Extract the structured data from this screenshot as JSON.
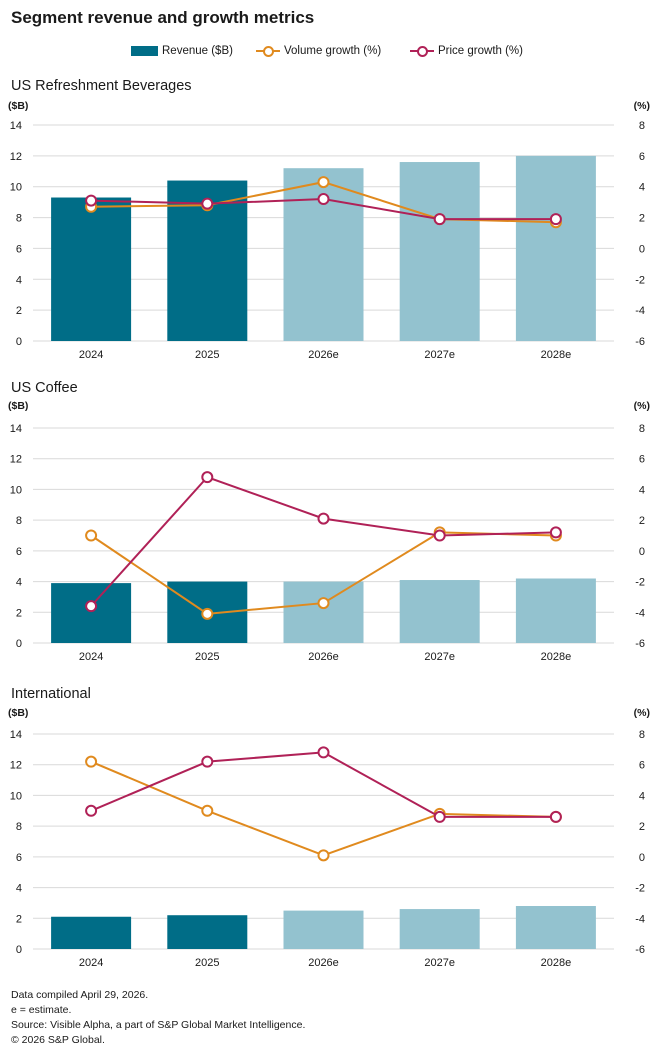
{
  "title": "Segment revenue and growth metrics",
  "legend": {
    "revenue": "Revenue ($B)",
    "volume": "Volume growth (%)",
    "price": "Price growth (%)"
  },
  "colors": {
    "actual_bar": "#006d87",
    "estimate_bar": "#93c2cf",
    "volume_line": "#e08a1e",
    "price_line": "#b02157",
    "gridline": "#d9d9d9"
  },
  "footnotes": [
    "Data compiled April 29, 2026.",
    "e = estimate.",
    "Source: Visible Alpha, a part of S&P Global Market Intelligence.",
    "© 2026 S&P Global."
  ],
  "chart_data": [
    {
      "type": "bar",
      "title": "US Refreshment Beverages",
      "ylabel": "($B)",
      "y2label": "(%)",
      "categories": [
        "2024",
        "2025",
        "2026e",
        "2027e",
        "2028e"
      ],
      "estimate_flags": [
        false,
        false,
        true,
        true,
        true
      ],
      "ylim": [
        0,
        14
      ],
      "yticks": [
        0,
        2,
        4,
        6,
        8,
        10,
        12,
        14
      ],
      "y2lim": [
        -6,
        8
      ],
      "y2ticks": [
        -6,
        -4,
        -2,
        0,
        2,
        4,
        6,
        8
      ],
      "grid": true,
      "series": [
        {
          "name": "Revenue ($B)",
          "type": "bar",
          "axis": "left",
          "values": [
            9.3,
            10.4,
            11.2,
            11.6,
            12.0
          ]
        },
        {
          "name": "Volume growth (%)",
          "type": "line",
          "axis": "right",
          "values": [
            2.7,
            2.8,
            4.3,
            1.9,
            1.7
          ]
        },
        {
          "name": "Price growth (%)",
          "type": "line",
          "axis": "right",
          "values": [
            3.1,
            2.9,
            3.2,
            1.9,
            1.9
          ]
        }
      ]
    },
    {
      "type": "bar",
      "title": "US Coffee",
      "ylabel": "($B)",
      "y2label": "(%)",
      "categories": [
        "2024",
        "2025",
        "2026e",
        "2027e",
        "2028e"
      ],
      "estimate_flags": [
        false,
        false,
        true,
        true,
        true
      ],
      "ylim": [
        0,
        14
      ],
      "yticks": [
        0,
        2,
        4,
        6,
        8,
        10,
        12,
        14
      ],
      "y2lim": [
        -6,
        8
      ],
      "y2ticks": [
        -6,
        -4,
        -2,
        0,
        2,
        4,
        6,
        8
      ],
      "grid": true,
      "series": [
        {
          "name": "Revenue ($B)",
          "type": "bar",
          "axis": "left",
          "values": [
            3.9,
            4.0,
            4.0,
            4.1,
            4.2
          ]
        },
        {
          "name": "Volume growth (%)",
          "type": "line",
          "axis": "right",
          "values": [
            1.0,
            -4.1,
            -3.4,
            1.2,
            1.0
          ]
        },
        {
          "name": "Price growth (%)",
          "type": "line",
          "axis": "right",
          "values": [
            -3.6,
            4.8,
            2.1,
            1.0,
            1.2
          ]
        }
      ]
    },
    {
      "type": "bar",
      "title": "International",
      "ylabel": "($B)",
      "y2label": "(%)",
      "categories": [
        "2024",
        "2025",
        "2026e",
        "2027e",
        "2028e"
      ],
      "estimate_flags": [
        false,
        false,
        true,
        true,
        true
      ],
      "ylim": [
        0,
        14
      ],
      "yticks": [
        0,
        2,
        4,
        6,
        8,
        10,
        12,
        14
      ],
      "y2lim": [
        -6,
        8
      ],
      "y2ticks": [
        -6,
        -4,
        -2,
        0,
        2,
        4,
        6,
        8
      ],
      "grid": true,
      "series": [
        {
          "name": "Revenue ($B)",
          "type": "bar",
          "axis": "left",
          "values": [
            2.1,
            2.2,
            2.5,
            2.6,
            2.8
          ]
        },
        {
          "name": "Volume growth (%)",
          "type": "line",
          "axis": "right",
          "values": [
            6.2,
            3.0,
            0.1,
            2.8,
            2.6
          ]
        },
        {
          "name": "Price growth (%)",
          "type": "line",
          "axis": "right",
          "values": [
            3.0,
            6.2,
            6.8,
            2.6,
            2.6
          ]
        }
      ]
    }
  ]
}
